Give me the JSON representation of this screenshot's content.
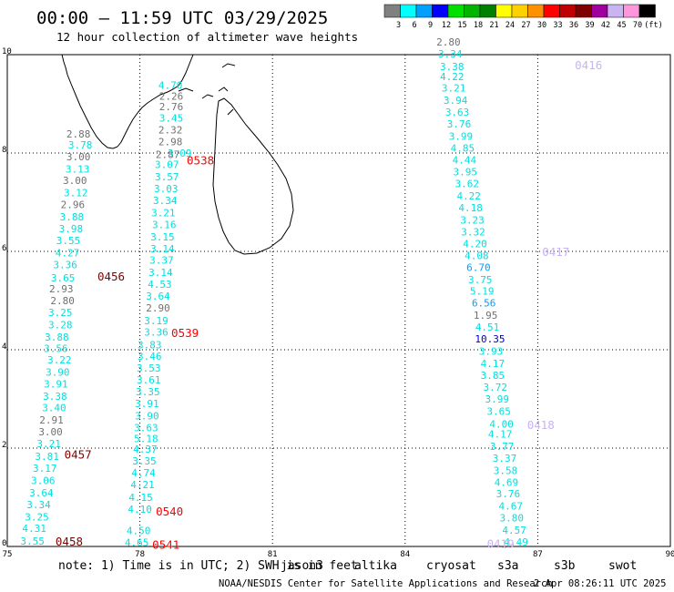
{
  "header": {
    "title": "00:00 – 11:59 UTC 03/29/2025",
    "subtitle": "12 hour collection of altimeter wave heights"
  },
  "color_scale": {
    "bins": [
      {
        "color": "#808080",
        "label": "3"
      },
      {
        "color": "#00ffff",
        "label": "6"
      },
      {
        "color": "#00a0ff",
        "label": "9"
      },
      {
        "color": "#0000ff",
        "label": "12"
      },
      {
        "color": "#00e000",
        "label": "15"
      },
      {
        "color": "#00b400",
        "label": "18"
      },
      {
        "color": "#008000",
        "label": "21"
      },
      {
        "color": "#ffff00",
        "label": "24"
      },
      {
        "color": "#ffd000",
        "label": "27"
      },
      {
        "color": "#ff9000",
        "label": "30"
      },
      {
        "color": "#ff0000",
        "label": "33"
      },
      {
        "color": "#c00000",
        "label": "36"
      },
      {
        "color": "#800000",
        "label": "39"
      },
      {
        "color": "#a000a0",
        "label": "42"
      },
      {
        "color": "#c8b4f0",
        "label": "45"
      },
      {
        "color": "#ff96dc",
        "label": "70"
      },
      {
        "color": "#000000",
        "label": "(ft)"
      }
    ]
  },
  "axes": {
    "lon_ticks": [
      "75",
      "78",
      "81",
      "84",
      "87",
      "90"
    ],
    "lat_ticks": [
      "0",
      "2",
      "4",
      "6",
      "8",
      "10"
    ]
  },
  "tracks": [
    {
      "points": [
        {
          "lat": 0.11,
          "lon": 75.57,
          "v": "3.55",
          "c": "#00e0e0"
        },
        {
          "lat": 0.37,
          "lon": 75.61,
          "v": "4.31",
          "c": "#00e0e0"
        },
        {
          "lat": 0.6,
          "lon": 75.67,
          "v": "3.25",
          "c": "#00e0e0"
        },
        {
          "lat": 0.85,
          "lon": 75.71,
          "v": "3.34",
          "c": "#00e0e0"
        },
        {
          "lat": 1.09,
          "lon": 75.77,
          "v": "3.64",
          "c": "#00e0e0"
        },
        {
          "lat": 1.34,
          "lon": 75.81,
          "v": "3.06",
          "c": "#00e0e0"
        },
        {
          "lat": 1.59,
          "lon": 75.85,
          "v": "3.17",
          "c": "#00e0e0"
        },
        {
          "lat": 1.83,
          "lon": 75.9,
          "v": "3.81",
          "c": "#00e0e0"
        },
        {
          "lat": 2.09,
          "lon": 75.94,
          "v": "3.21",
          "c": "#00e0e0"
        },
        {
          "lat": 2.33,
          "lon": 75.98,
          "v": "3.00",
          "c": "#707070"
        },
        {
          "lat": 2.57,
          "lon": 76.0,
          "v": "2.91",
          "c": "#707070"
        },
        {
          "lat": 2.82,
          "lon": 76.06,
          "v": "3.40",
          "c": "#00e0e0"
        },
        {
          "lat": 3.06,
          "lon": 76.08,
          "v": "3.38",
          "c": "#00e0e0"
        },
        {
          "lat": 3.31,
          "lon": 76.1,
          "v": "3.91",
          "c": "#00e0e0"
        },
        {
          "lat": 3.55,
          "lon": 76.14,
          "v": "3.90",
          "c": "#00e0e0"
        },
        {
          "lat": 3.8,
          "lon": 76.18,
          "v": "3.22",
          "c": "#00e0e0"
        },
        {
          "lat": 4.03,
          "lon": 76.1,
          "v": "3.56",
          "c": "#00e0e0"
        },
        {
          "lat": 4.26,
          "lon": 76.12,
          "v": "3.88",
          "c": "#00e0e0"
        },
        {
          "lat": 4.51,
          "lon": 76.2,
          "v": "3.28",
          "c": "#00e0e0"
        },
        {
          "lat": 4.76,
          "lon": 76.2,
          "v": "3.25",
          "c": "#00e0e0"
        },
        {
          "lat": 5.0,
          "lon": 76.25,
          "v": "2.80",
          "c": "#707070"
        },
        {
          "lat": 5.24,
          "lon": 76.22,
          "v": "2.93",
          "c": "#707070"
        },
        {
          "lat": 5.46,
          "lon": 76.26,
          "v": "3.65",
          "c": "#00e0e0"
        },
        {
          "lat": 5.73,
          "lon": 76.31,
          "v": "3.36",
          "c": "#00e0e0"
        },
        {
          "lat": 5.97,
          "lon": 76.36,
          "v": "4.27",
          "c": "#00e0e0"
        },
        {
          "lat": 6.22,
          "lon": 76.38,
          "v": "3.55",
          "c": "#00e0e0"
        },
        {
          "lat": 6.46,
          "lon": 76.44,
          "v": "3.98",
          "c": "#00e0e0"
        },
        {
          "lat": 6.7,
          "lon": 76.46,
          "v": "3.88",
          "c": "#00e0e0"
        },
        {
          "lat": 6.95,
          "lon": 76.48,
          "v": "2.96",
          "c": "#707070"
        },
        {
          "lat": 7.19,
          "lon": 76.55,
          "v": "3.12",
          "c": "#00e0e0"
        },
        {
          "lat": 7.44,
          "lon": 76.53,
          "v": "3.00",
          "c": "#707070"
        },
        {
          "lat": 7.68,
          "lon": 76.59,
          "v": "3.13",
          "c": "#00e0e0"
        },
        {
          "lat": 7.93,
          "lon": 76.61,
          "v": "3.00",
          "c": "#707070"
        },
        {
          "lat": 8.17,
          "lon": 76.65,
          "v": "3.78",
          "c": "#00e0e0"
        },
        {
          "lat": 8.39,
          "lon": 76.61,
          "v": "2.88",
          "c": "#707070"
        }
      ],
      "pass_labels": [
        {
          "text": "0458",
          "lat": 0.09,
          "lon": 76.4,
          "c": "#800000"
        },
        {
          "text": "0457",
          "lat": 1.86,
          "lon": 76.6,
          "c": "#800000"
        },
        {
          "text": "0456",
          "lat": 5.48,
          "lon": 77.35,
          "c": "#800000"
        }
      ]
    },
    {
      "points": [
        {
          "lat": 0.08,
          "lon": 77.93,
          "v": "4.65",
          "c": "#00e0e0"
        },
        {
          "lat": 0.32,
          "lon": 77.97,
          "v": "4.50",
          "c": "#00e0e0"
        },
        {
          "lat": 0.76,
          "lon": 78.0,
          "v": "4.10",
          "c": "#00e0e0"
        },
        {
          "lat": 1.0,
          "lon": 78.02,
          "v": "4.15",
          "c": "#00e0e0"
        },
        {
          "lat": 1.26,
          "lon": 78.06,
          "v": "4.21",
          "c": "#00e0e0"
        },
        {
          "lat": 1.5,
          "lon": 78.08,
          "v": "4.74",
          "c": "#00e0e0"
        },
        {
          "lat": 1.74,
          "lon": 78.1,
          "v": "3.35",
          "c": "#00e0e0"
        },
        {
          "lat": 1.98,
          "lon": 78.12,
          "v": "4.37",
          "c": "#00e0e0"
        },
        {
          "lat": 2.19,
          "lon": 78.14,
          "v": "5.18",
          "c": "#00e0e0"
        },
        {
          "lat": 2.42,
          "lon": 78.14,
          "v": "3.63",
          "c": "#00e0e0"
        },
        {
          "lat": 2.66,
          "lon": 78.16,
          "v": "3.90",
          "c": "#00e0e0"
        },
        {
          "lat": 2.91,
          "lon": 78.16,
          "v": "3.91",
          "c": "#00e0e0"
        },
        {
          "lat": 3.15,
          "lon": 78.18,
          "v": "3.35",
          "c": "#00e0e0"
        },
        {
          "lat": 3.39,
          "lon": 78.2,
          "v": "3.61",
          "c": "#00e0e0"
        },
        {
          "lat": 3.63,
          "lon": 78.2,
          "v": "3.53",
          "c": "#00e0e0"
        },
        {
          "lat": 3.87,
          "lon": 78.22,
          "v": "3.46",
          "c": "#00e0e0"
        },
        {
          "lat": 4.1,
          "lon": 78.22,
          "v": "3.83",
          "c": "#00e0e0"
        },
        {
          "lat": 4.36,
          "lon": 78.37,
          "v": "3.36",
          "c": "#00e0e0"
        },
        {
          "lat": 4.59,
          "lon": 78.37,
          "v": "3.19",
          "c": "#00e0e0"
        },
        {
          "lat": 4.85,
          "lon": 78.41,
          "v": "2.90",
          "c": "#707070"
        },
        {
          "lat": 5.09,
          "lon": 78.41,
          "v": "3.64",
          "c": "#00e0e0"
        },
        {
          "lat": 5.33,
          "lon": 78.45,
          "v": "4.53",
          "c": "#00e0e0"
        },
        {
          "lat": 5.57,
          "lon": 78.47,
          "v": "3.14",
          "c": "#00e0e0"
        },
        {
          "lat": 5.82,
          "lon": 78.49,
          "v": "3.37",
          "c": "#00e0e0"
        },
        {
          "lat": 6.06,
          "lon": 78.51,
          "v": "3.14",
          "c": "#00e0e0"
        },
        {
          "lat": 6.3,
          "lon": 78.51,
          "v": "3.15",
          "c": "#00e0e0"
        },
        {
          "lat": 6.55,
          "lon": 78.55,
          "v": "3.16",
          "c": "#00e0e0"
        },
        {
          "lat": 6.79,
          "lon": 78.53,
          "v": "3.21",
          "c": "#00e0e0"
        },
        {
          "lat": 7.04,
          "lon": 78.57,
          "v": "3.34",
          "c": "#00e0e0"
        },
        {
          "lat": 7.28,
          "lon": 78.59,
          "v": "3.03",
          "c": "#00e0e0"
        },
        {
          "lat": 7.52,
          "lon": 78.61,
          "v": "3.57",
          "c": "#00e0e0"
        },
        {
          "lat": 7.77,
          "lon": 78.61,
          "v": "3.07",
          "c": "#00e0e0"
        },
        {
          "lat": 7.97,
          "lon": 78.63,
          "v": "2.87",
          "c": "#707070"
        },
        {
          "lat": 8.0,
          "lon": 78.9,
          "v": "3.09",
          "c": "#00e0e0"
        },
        {
          "lat": 8.23,
          "lon": 78.69,
          "v": "2.98",
          "c": "#707070"
        },
        {
          "lat": 8.47,
          "lon": 78.69,
          "v": "2.32",
          "c": "#707070"
        },
        {
          "lat": 8.71,
          "lon": 78.71,
          "v": "3.45",
          "c": "#00e0e0"
        },
        {
          "lat": 8.94,
          "lon": 78.71,
          "v": "2.76",
          "c": "#707070"
        },
        {
          "lat": 9.16,
          "lon": 78.71,
          "v": "2.26",
          "c": "#707070"
        },
        {
          "lat": 9.38,
          "lon": 78.69,
          "v": "4.70",
          "c": "#00e0e0"
        }
      ],
      "pass_labels": [
        {
          "text": "0541",
          "lat": 0.03,
          "lon": 78.59,
          "c": "#ff0000"
        },
        {
          "text": "0540",
          "lat": 0.7,
          "lon": 78.67,
          "c": "#ff0000"
        },
        {
          "text": "0539",
          "lat": 4.33,
          "lon": 79.02,
          "c": "#ff0000"
        },
        {
          "text": "0538",
          "lat": 7.84,
          "lon": 79.37,
          "c": "#ff0000"
        }
      ]
    },
    {
      "points": [
        {
          "lat": 0.09,
          "lon": 86.51,
          "v": "4.49",
          "c": "#00e0e0"
        },
        {
          "lat": 0.33,
          "lon": 86.47,
          "v": "4.57",
          "c": "#00e0e0"
        },
        {
          "lat": 0.58,
          "lon": 86.41,
          "v": "3.80",
          "c": "#00e0e0"
        },
        {
          "lat": 0.82,
          "lon": 86.39,
          "v": "4.67",
          "c": "#00e0e0"
        },
        {
          "lat": 1.07,
          "lon": 86.33,
          "v": "3.76",
          "c": "#00e0e0"
        },
        {
          "lat": 1.31,
          "lon": 86.29,
          "v": "4.69",
          "c": "#00e0e0"
        },
        {
          "lat": 1.55,
          "lon": 86.27,
          "v": "3.58",
          "c": "#00e0e0"
        },
        {
          "lat": 1.8,
          "lon": 86.25,
          "v": "3.37",
          "c": "#00e0e0"
        },
        {
          "lat": 2.04,
          "lon": 86.19,
          "v": "3.77",
          "c": "#00e0e0"
        },
        {
          "lat": 2.29,
          "lon": 86.15,
          "v": "4.17",
          "c": "#00e0e0"
        },
        {
          "lat": 2.49,
          "lon": 86.18,
          "v": "4.00",
          "c": "#00e0e0"
        },
        {
          "lat": 2.75,
          "lon": 86.12,
          "v": "3.65",
          "c": "#00e0e0"
        },
        {
          "lat": 3.0,
          "lon": 86.08,
          "v": "3.99",
          "c": "#00e0e0"
        },
        {
          "lat": 3.24,
          "lon": 86.04,
          "v": "3.72",
          "c": "#00e0e0"
        },
        {
          "lat": 3.48,
          "lon": 85.98,
          "v": "3.85",
          "c": "#00e0e0"
        },
        {
          "lat": 3.72,
          "lon": 85.98,
          "v": "4.17",
          "c": "#00e0e0"
        },
        {
          "lat": 3.97,
          "lon": 85.94,
          "v": "3.93",
          "c": "#00e0e0"
        },
        {
          "lat": 4.22,
          "lon": 85.92,
          "v": "10.35",
          "c": "#0000c8"
        },
        {
          "lat": 4.46,
          "lon": 85.86,
          "v": "4.51",
          "c": "#00e0e0"
        },
        {
          "lat": 4.7,
          "lon": 85.82,
          "v": "1.95",
          "c": "#707070"
        },
        {
          "lat": 4.95,
          "lon": 85.78,
          "v": "6.56",
          "c": "#00a0ff"
        },
        {
          "lat": 5.19,
          "lon": 85.74,
          "v": "5.19",
          "c": "#00e0e0"
        },
        {
          "lat": 5.43,
          "lon": 85.7,
          "v": "3.75",
          "c": "#00e0e0"
        },
        {
          "lat": 5.68,
          "lon": 85.66,
          "v": "6.70",
          "c": "#00a0ff"
        },
        {
          "lat": 5.92,
          "lon": 85.62,
          "v": "4.08",
          "c": "#00e0e0"
        },
        {
          "lat": 6.16,
          "lon": 85.58,
          "v": "4.20",
          "c": "#00e0e0"
        },
        {
          "lat": 6.4,
          "lon": 85.54,
          "v": "3.32",
          "c": "#00e0e0"
        },
        {
          "lat": 6.64,
          "lon": 85.52,
          "v": "3.23",
          "c": "#00e0e0"
        },
        {
          "lat": 6.89,
          "lon": 85.48,
          "v": "4.18",
          "c": "#00e0e0"
        },
        {
          "lat": 7.13,
          "lon": 85.44,
          "v": "4.22",
          "c": "#00e0e0"
        },
        {
          "lat": 7.38,
          "lon": 85.4,
          "v": "3.62",
          "c": "#00e0e0"
        },
        {
          "lat": 7.62,
          "lon": 85.36,
          "v": "3.95",
          "c": "#00e0e0"
        },
        {
          "lat": 7.86,
          "lon": 85.34,
          "v": "4.44",
          "c": "#00e0e0"
        },
        {
          "lat": 8.1,
          "lon": 85.3,
          "v": "4.85",
          "c": "#00e0e0"
        },
        {
          "lat": 8.34,
          "lon": 85.26,
          "v": "3.99",
          "c": "#00e0e0"
        },
        {
          "lat": 8.59,
          "lon": 85.22,
          "v": "3.76",
          "c": "#00e0e0"
        },
        {
          "lat": 8.83,
          "lon": 85.18,
          "v": "3.63",
          "c": "#00e0e0"
        },
        {
          "lat": 9.07,
          "lon": 85.14,
          "v": "3.94",
          "c": "#00e0e0"
        },
        {
          "lat": 9.32,
          "lon": 85.1,
          "v": "3.21",
          "c": "#00e0e0"
        },
        {
          "lat": 9.56,
          "lon": 85.06,
          "v": "4.22",
          "c": "#00e0e0"
        },
        {
          "lat": 9.76,
          "lon": 85.06,
          "v": "3.38",
          "c": "#00e0e0"
        },
        {
          "lat": 10.02,
          "lon": 85.02,
          "v": "3.34",
          "c": "#00e0e0"
        },
        {
          "lat": 10.26,
          "lon": 84.98,
          "v": "2.80",
          "c": "#707070"
        }
      ],
      "pass_labels": [
        {
          "text": "0419",
          "lat": 0.05,
          "lon": 86.16,
          "c": "#c8b4f0"
        },
        {
          "text": "0418",
          "lat": 2.46,
          "lon": 87.07,
          "c": "#c8b4f0"
        },
        {
          "text": "0417",
          "lat": 5.98,
          "lon": 87.41,
          "c": "#c8b4f0"
        },
        {
          "text": "0416",
          "lat": 9.78,
          "lon": 88.15,
          "c": "#c8b4f0"
        }
      ]
    }
  ],
  "footer": {
    "note_text": "note:  1) Time is in UTC; 2) SWH is in feet",
    "satellites": [
      {
        "name": "jason3",
        "color": "#008000"
      },
      {
        "name": "altika",
        "color": "#ff9000"
      },
      {
        "name": "cryosat",
        "color": "#ff0000"
      },
      {
        "name": "s3a",
        "color": "#800000"
      },
      {
        "name": "s3b",
        "color": "#c8b4f0"
      },
      {
        "name": "swot",
        "color": "#ff96dc"
      }
    ],
    "credit": "NOAA/NESDIS Center for Satellite Applications and Research",
    "timestamp": "2 Apr 08:26:11 UTC 2025"
  }
}
